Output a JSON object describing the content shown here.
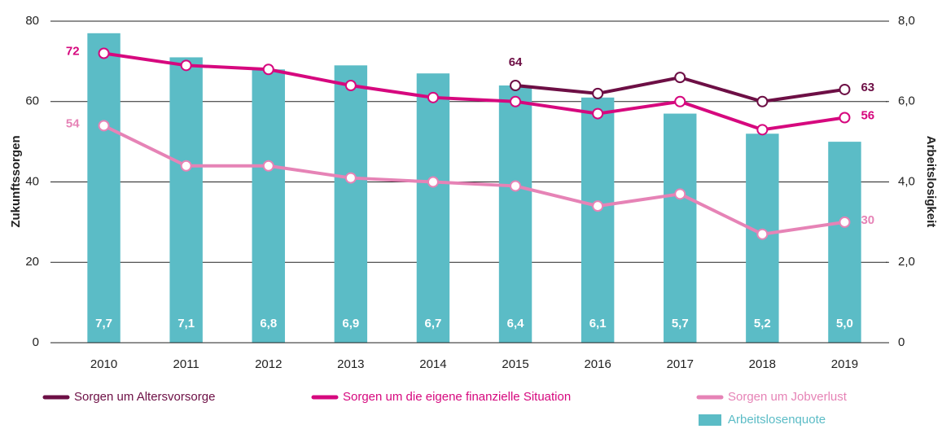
{
  "chart_data": {
    "type": "combo",
    "categories": [
      "2010",
      "2011",
      "2012",
      "2013",
      "2014",
      "2015",
      "2016",
      "2017",
      "2018",
      "2019"
    ],
    "ylabel": "Zukunftssorgen",
    "y2label": "Arbeitslosigkeit",
    "ylim": [
      0,
      80
    ],
    "yticks": [
      0,
      20,
      40,
      60,
      80
    ],
    "y2lim": [
      0,
      8
    ],
    "y2ticks": [
      0,
      {
        "value": 2,
        "label": "2,0"
      },
      {
        "value": 4,
        "label": "4,0"
      },
      {
        "value": 6,
        "label": "6,0"
      },
      {
        "value": 8,
        "label": "8,0"
      }
    ],
    "grid": true,
    "series": [
      {
        "name": "Arbeitslosenquote",
        "type": "bar",
        "axis": "y2",
        "color": "#5bbcc6",
        "values": [
          7.7,
          7.1,
          6.8,
          6.9,
          6.7,
          6.4,
          6.1,
          5.7,
          5.2,
          5.0
        ],
        "value_labels": [
          "7,7",
          "7,1",
          "6,8",
          "6,9",
          "6,7",
          "6,4",
          "6,1",
          "5,7",
          "5,2",
          "5,0"
        ]
      },
      {
        "name": "Sorgen um Altersvorsorge",
        "type": "line",
        "color": "#6d0f45",
        "values": [
          null,
          null,
          null,
          null,
          null,
          64,
          62,
          66,
          60,
          63
        ]
      },
      {
        "name": "Sorgen um die eigene finanzielle Situation",
        "type": "line",
        "color": "#d6087e",
        "values": [
          72,
          69,
          68,
          64,
          61,
          60,
          57,
          60,
          53,
          56
        ]
      },
      {
        "name": "Sorgen um Jobverlust",
        "type": "line",
        "color": "#e683b6",
        "values": [
          54,
          44,
          44,
          41,
          40,
          39,
          34,
          37,
          27,
          30
        ]
      }
    ]
  }
}
